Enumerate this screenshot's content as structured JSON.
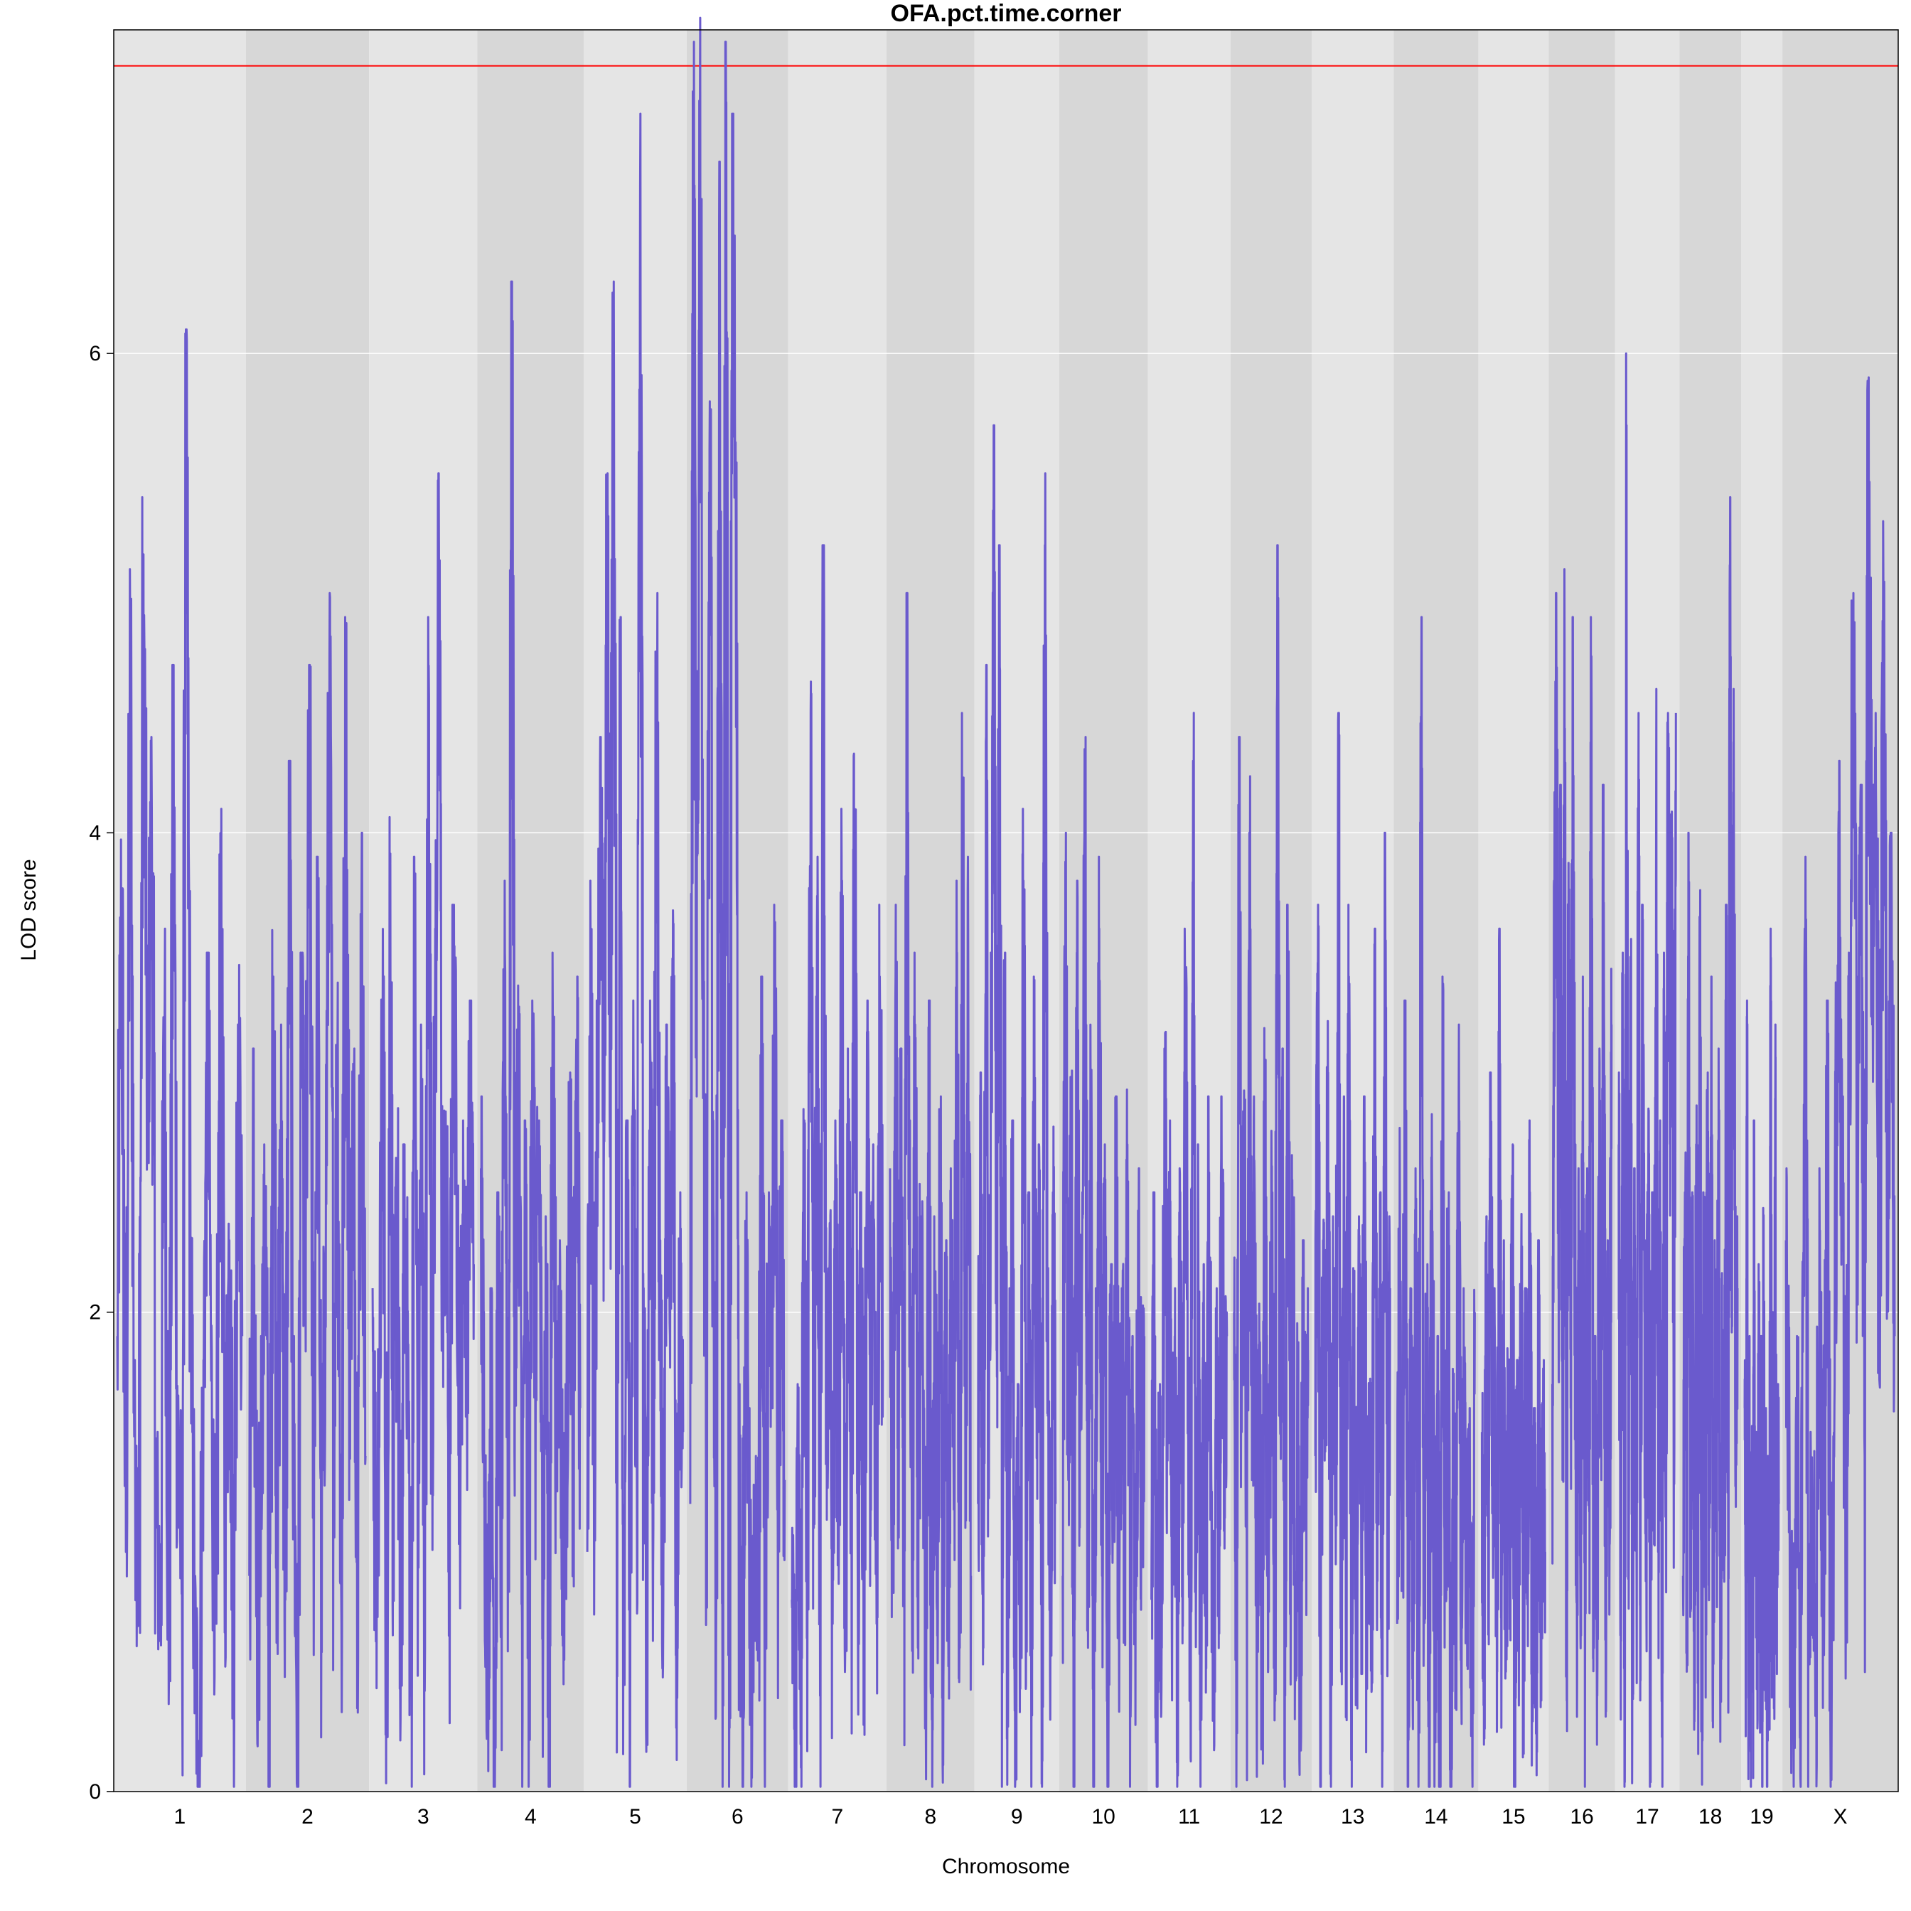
{
  "chart_data": {
    "type": "line",
    "title": "OFA.pct.time.corner",
    "xlabel": "Chromosome",
    "ylabel": "LOD score",
    "ylim": [
      0,
      7.35
    ],
    "yticks": [
      0,
      2,
      4,
      6
    ],
    "grid": true,
    "threshold": 7.2,
    "colors": {
      "line": "#6A5ACD",
      "threshold": "#FF0000",
      "band_light": "#E5E5E5",
      "band_dark": "#D7D7D7",
      "grid": "#FFFFFF"
    },
    "chromosomes": [
      "1",
      "2",
      "3",
      "4",
      "5",
      "6",
      "7",
      "8",
      "9",
      "10",
      "11",
      "12",
      "13",
      "14",
      "15",
      "16",
      "17",
      "18",
      "19",
      "X"
    ],
    "chromosome_spans": [
      195,
      182,
      160,
      157,
      152,
      150,
      145,
      130,
      125,
      131,
      122,
      120,
      121,
      125,
      104,
      98,
      95,
      91,
      61,
      171
    ],
    "series": [
      {
        "anchors": [
          [
            1.9,
            3.7,
            1.0,
            4.8,
            1.5,
            0.9,
            5.1,
            2.9,
            4.1,
            1.2,
            0.8,
            3.3,
            0.5,
            4.4,
            1.5,
            0.9,
            5.8,
            2.1,
            0.6,
            0.1,
            1.8,
            3.2,
            1.3,
            0.7,
            3.8,
            1.1,
            2.3,
            0.6,
            3.2,
            1.9
          ],
          [
            0.9,
            2.8,
            0.2,
            1.6,
            2.4,
            0.3,
            3.4,
            1.1,
            2.9,
            0.8,
            4.0,
            1.6,
            0.2,
            3.2,
            2.1,
            4.4,
            1.3,
            3.6,
            0.9,
            2.2,
            4.7,
            1.5,
            3.1,
            0.7,
            4.6,
            1.9,
            2.8,
            1.1,
            3.7,
            1.4
          ],
          [
            2.1,
            0.7,
            1.8,
            3.3,
            0.5,
            3.9,
            1.1,
            2.6,
            0.3,
            2.4,
            1.9,
            0.4,
            3.6,
            1.2,
            2.9,
            0.6,
            4.6,
            1.5,
            3.3,
            5.2,
            2.1,
            2.7,
            1.0,
            3.4,
            2.8,
            1.4,
            2.5,
            1.9,
            3.0,
            2.2
          ],
          [
            2.6,
            1.3,
            0.6,
            1.8,
            0.2,
            2.2,
            0.9,
            3.5,
            1.1,
            6.0,
            1.8,
            3.2,
            0.7,
            2.5,
            0.4,
            3.3,
            1.6,
            2.8,
            0.8,
            2.1,
            0.3,
            3.2,
            1.5,
            2.0,
            0.9,
            1.4,
            2.7,
            1.2,
            3.1,
            1.6
          ],
          [
            1.0,
            3.5,
            1.3,
            3.0,
            4.1,
            2.6,
            5.2,
            3.1,
            6.3,
            1.4,
            4.6,
            0.8,
            2.5,
            0.5,
            3.0,
            1.3,
            6.7,
            1.8,
            0.7,
            3.3,
            1.1,
            4.7,
            2.0,
            0.8,
            2.9,
            1.9,
            3.6,
            0.7,
            2.2,
            1.5
          ],
          [
            1.2,
            7.0,
            2.9,
            7.1,
            3.5,
            1.2,
            5.8,
            2.5,
            0.8,
            6.5,
            1.0,
            7.0,
            0.4,
            6.7,
            5.3,
            1.4,
            0.3,
            2.2,
            1.3,
            0.2,
            1.1,
            0.9,
            3.1,
            0.6,
            2.2,
            1.7,
            3.4,
            1.0,
            2.5,
            1.3
          ],
          [
            0.8,
            0.1,
            1.4,
            0.5,
            2.8,
            0.8,
            4.5,
            1.1,
            3.6,
            0.4,
            4.9,
            1.5,
            2.2,
            0.7,
            2.5,
            1.1,
            3.8,
            0.6,
            2.8,
            1.2,
            4.1,
            0.9,
            2.2,
            0.4,
            3.0,
            1.5,
            2.4,
            0.7,
            3.4,
            1.8
          ],
          [
            2.6,
            1.0,
            3.4,
            1.5,
            2.8,
            0.8,
            4.7,
            2.5,
            1.0,
            3.2,
            0.6,
            2.4,
            1.5,
            0.5,
            3.0,
            0.3,
            2.1,
            0.9,
            2.6,
            0.6,
            2.0,
            0.7,
            2.3,
            1.4,
            3.5,
            0.6,
            4.2,
            1.1,
            3.6,
            0.9
          ],
          [
            1.2,
            2.7,
            0.6,
            4.4,
            1.4,
            3.2,
            5.4,
            2.0,
            4.9,
            0.8,
            3.2,
            0.5,
            1.8,
            2.5,
            0.3,
            1.4,
            0.7,
            3.8,
            1.0,
            2.2,
            0.5,
            3.1,
            1.6,
            2.4,
            0.4,
            5.2,
            1.9,
            0.3,
            2.5,
            1.2
          ],
          [
            0.9,
            3.7,
            1.3,
            2.8,
            0.2,
            3.5,
            1.5,
            2.5,
            4.1,
            0.6,
            2.9,
            0.3,
            1.8,
            3.6,
            0.9,
            2.7,
            0.4,
            1.9,
            1.2,
            2.6,
            0.7,
            2.1,
            1.0,
            2.7,
            0.5,
            1.6,
            0.8,
            2.3,
            1.1,
            1.9
          ],
          [
            0.8,
            2.2,
            0.2,
            1.4,
            0.6,
            3.1,
            1.6,
            2.5,
            0.9,
            1.8,
            0.4,
            2.3,
            1.2,
            3.3,
            1.8,
            0.7,
            4.3,
            1.1,
            2.4,
            0.4,
            1.9,
            0.8,
            2.6,
            1.3,
            0.5,
            1.8,
            1.0,
            2.6,
            1.4,
            1.9
          ],
          [
            2.0,
            0.6,
            4.1,
            1.5,
            2.8,
            0.7,
            4.0,
            1.3,
            2.6,
            0.6,
            1.8,
            0.4,
            3.0,
            0.9,
            1.5,
            2.5,
            0.5,
            4.9,
            1.6,
            2.8,
            0.4,
            3.4,
            1.0,
            2.4,
            0.6,
            1.7,
            0.3,
            2.0,
            1.1,
            1.8
          ],
          [
            1.4,
            3.4,
            0.5,
            2.3,
            1.6,
            3.0,
            0.6,
            2.1,
            1.2,
            4.2,
            0.5,
            2.6,
            0.9,
            3.4,
            0.4,
            1.9,
            0.7,
            2.1,
            1.0,
            2.6,
            0.5,
            1.6,
            0.8,
            3.3,
            1.2,
            2.2,
            0.6,
            3.7,
            0.9,
            2.1
          ],
          [
            0.7,
            2.5,
            1.1,
            3.0,
            0.4,
            1.8,
            0.6,
            2.3,
            0.2,
            4.6,
            0.9,
            1.9,
            0.3,
            2.6,
            0.5,
            1.6,
            0.1,
            3.1,
            0.8,
            2.2,
            0.3,
            1.5,
            0.7,
            2.9,
            0.4,
            1.8,
            0.9,
            1.3,
            0.5,
            2.0
          ],
          [
            1.5,
            0.4,
            2.1,
            0.9,
            2.7,
            1.3,
            1.8,
            0.5,
            3.3,
            0.8,
            2.0,
            0.5,
            1.6,
            1.0,
            2.4,
            0.3,
            1.5,
            0.9,
            2.2,
            0.6,
            1.8,
            1.1,
            2.5,
            0.7,
            1.3,
            0.4,
            2.0,
            0.8,
            1.5,
            1.0
          ],
          [
            1.7,
            3.5,
            4.7,
            2.1,
            3.9,
            1.3,
            4.8,
            0.7,
            3.6,
            1.6,
            4.6,
            2.4,
            0.8,
            2.3,
            1.0,
            3.1,
            0.5,
            2.3,
            1.2,
            4.6,
            0.9,
            1.6,
            0.4,
            2.8,
            1.3,
            3.9,
            0.7,
            2.0,
            1.1,
            3.2
          ],
          [
            2.7,
            1.0,
            3.2,
            0.4,
            5.7,
            1.5,
            3.4,
            0.5,
            2.3,
            1.2,
            4.2,
            0.9,
            3.4,
            2.0,
            1.1,
            2.6,
            0.5,
            2.2,
            1.4,
            4.3,
            1.0,
            2.8,
            0.6,
            3.2,
            1.5,
            4.5,
            3.0,
            3.9,
            1.5,
            4.5
          ],
          [
            0.9,
            2.5,
            0.5,
            3.7,
            1.2,
            2.2,
            0.6,
            2.7,
            1.0,
            3.5,
            0.4,
            2.2,
            0.8,
            2.7,
            1.1,
            3.1,
            0.5,
            2.0,
            1.2,
            2.8,
            0.6,
            1.9,
            1.0,
            3.4,
            1.3,
            5.1,
            2.2,
            4.3,
            1.5,
            2.1
          ],
          [
            1.6,
            0.8,
            3.0,
            0.5,
            1.6,
            0.2,
            1.4,
            0.5,
            2.5,
            0.9,
            1.2,
            0.3,
            1.9,
            0.8,
            1.6,
            0.4,
            2.2,
            0.6,
            1.3,
            0.1,
            1.1,
            0.5,
            3.3,
            0.9,
            1.7,
            0.4,
            2.9,
            0.8,
            1.4,
            1.2
          ],
          [
            2.3,
            1.0,
            0.2,
            1.6,
            0.5,
            3.6,
            0.9,
            1.2,
            0.6,
            2.3,
            0.8,
            3.0,
            0.5,
            1.7,
            4.0,
            2.6,
            0.9,
            3.2,
            5.0,
            2.5,
            3.9,
            1.4,
            5.6,
            3.2,
            4.2,
            1.7,
            5.0,
            2.4,
            3.7,
            1.9
          ]
        ]
      }
    ]
  }
}
